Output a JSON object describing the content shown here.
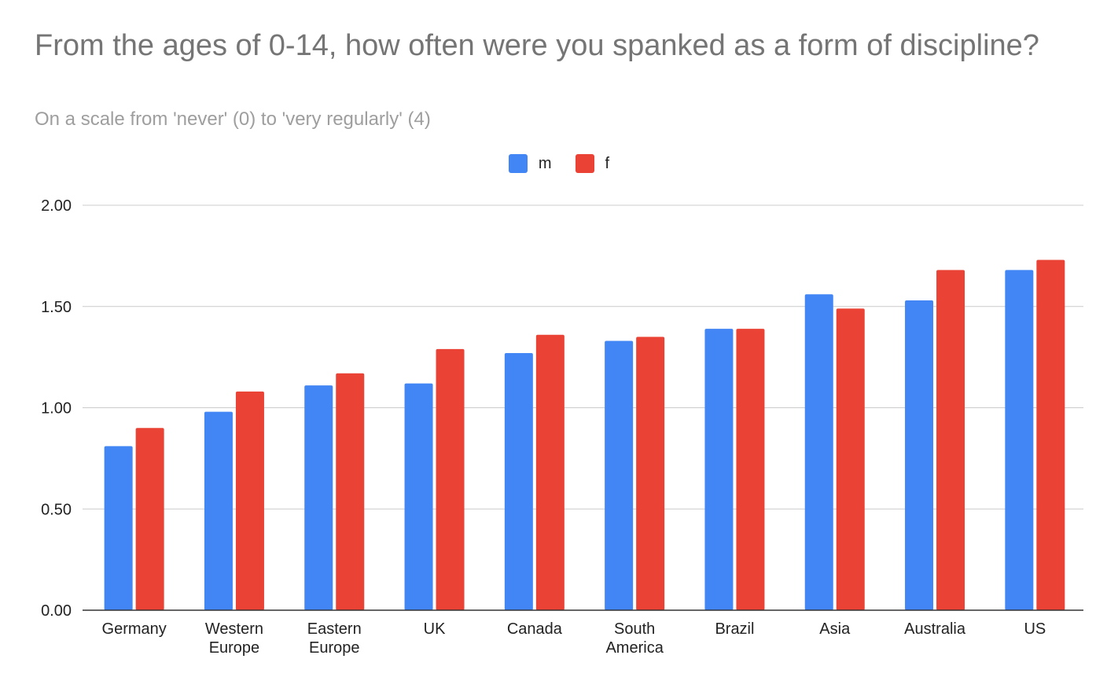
{
  "chart_data": {
    "type": "bar",
    "title": "From the ages of 0-14, how often were you spanked as a form of discipline?",
    "subtitle": "On a scale from 'never' (0) to 'very regularly' (4)",
    "categories": [
      [
        "Germany"
      ],
      [
        "Western",
        "Europe"
      ],
      [
        "Eastern",
        "Europe"
      ],
      [
        "UK"
      ],
      [
        "Canada"
      ],
      [
        "South",
        "America"
      ],
      [
        "Brazil"
      ],
      [
        "Asia"
      ],
      [
        "Australia"
      ],
      [
        "US"
      ]
    ],
    "series": [
      {
        "name": "m",
        "color": "#4285f4",
        "values": [
          0.81,
          0.98,
          1.11,
          1.12,
          1.27,
          1.33,
          1.39,
          1.56,
          1.53,
          1.68
        ]
      },
      {
        "name": "f",
        "color": "#ea4335",
        "values": [
          0.9,
          1.08,
          1.17,
          1.29,
          1.36,
          1.35,
          1.39,
          1.49,
          1.68,
          1.73
        ]
      }
    ],
    "ylim": [
      0,
      2
    ],
    "yticks": [
      "0.00",
      "0.50",
      "1.00",
      "1.50",
      "2.00"
    ],
    "xlabel": "",
    "ylabel": "",
    "grid": true,
    "legend_position": "top-center"
  }
}
